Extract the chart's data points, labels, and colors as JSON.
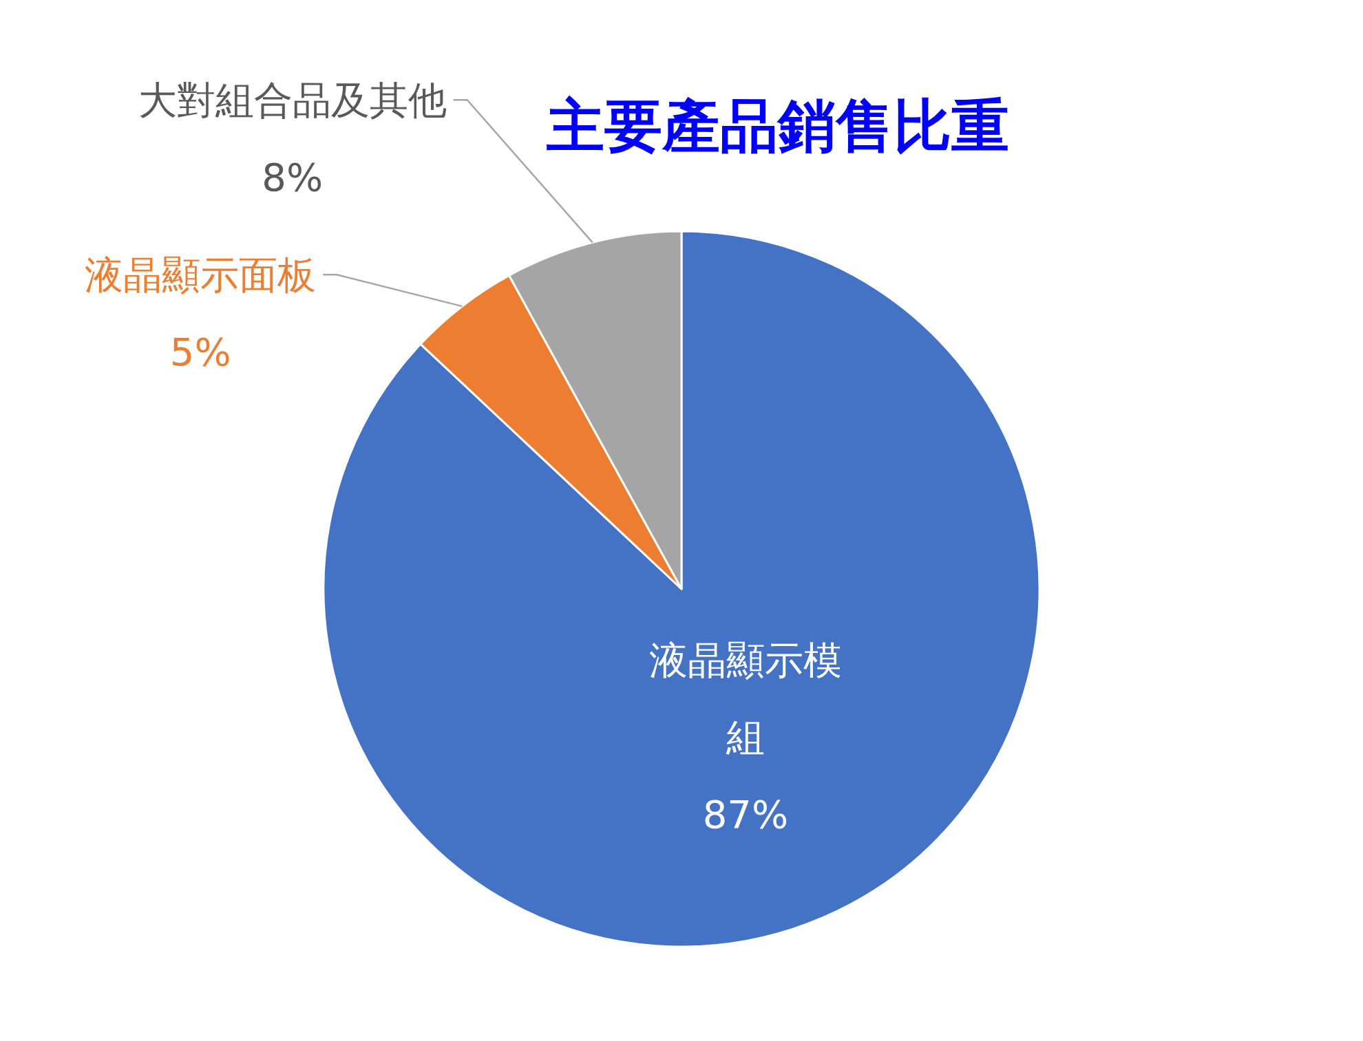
{
  "chart_data": {
    "type": "pie",
    "title": "主要產品銷售比重",
    "categories": [
      "液晶顯示模組",
      "液晶顯示面板",
      "大對組合品及其他"
    ],
    "values": [
      87,
      5,
      8
    ],
    "colors": [
      "#4472c4",
      "#ed7d31",
      "#a5a5a5"
    ],
    "value_labels": [
      "87%",
      "5%",
      "8%"
    ]
  }
}
